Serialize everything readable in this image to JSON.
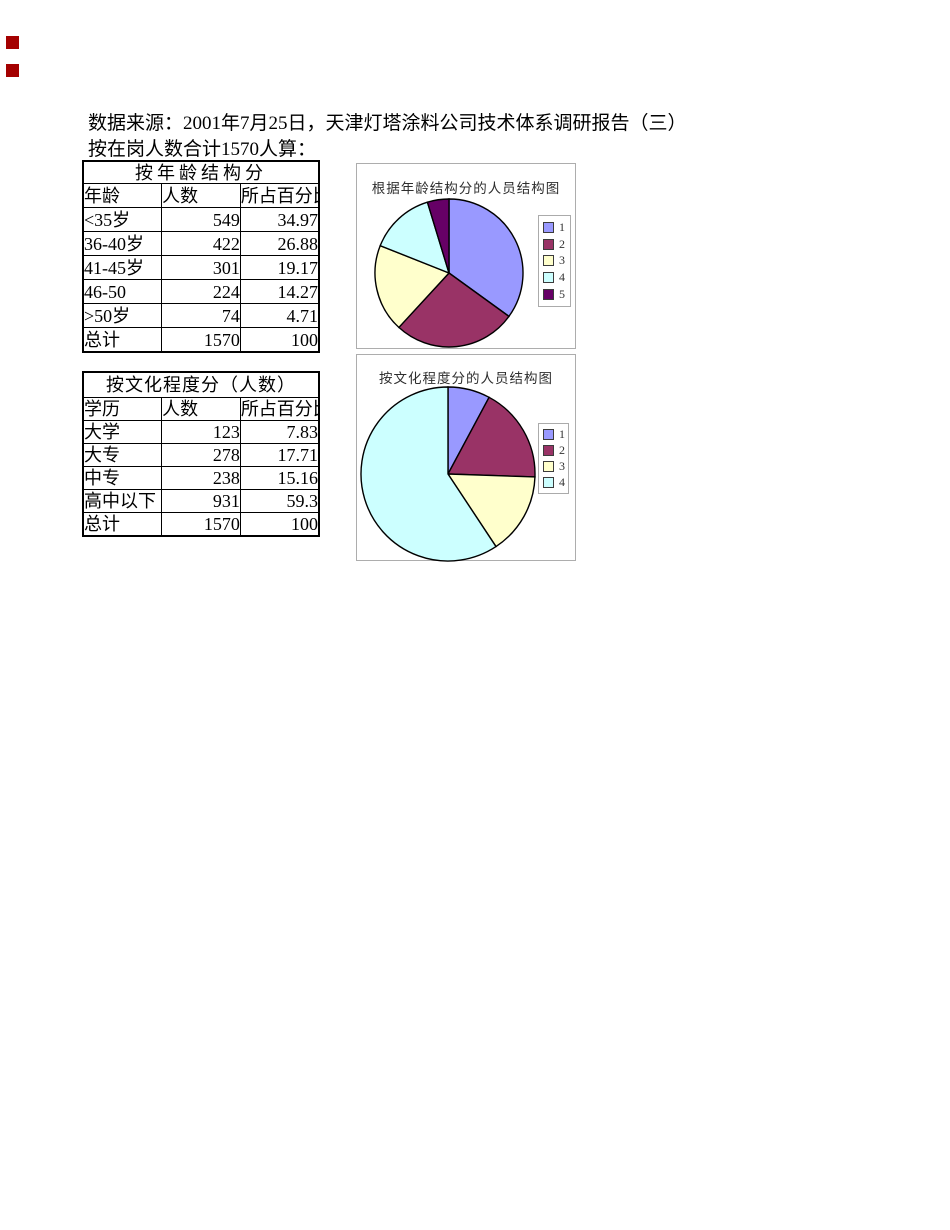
{
  "page": {
    "source_line": "数据来源：2001年7月25日，天津灯塔涂料公司技术体系调研报告（三）",
    "total_line": "按在岗人数合计1570人算："
  },
  "markers": {
    "color": "#a40000"
  },
  "tables": [
    {
      "title": "按年龄结构分",
      "headers": [
        "年龄",
        "人数",
        "所占百分比"
      ],
      "rows": [
        [
          "<35岁",
          "549",
          "34.97"
        ],
        [
          "36-40岁",
          "422",
          "26.88"
        ],
        [
          "41-45岁",
          "301",
          "19.17"
        ],
        [
          "46-50",
          "224",
          "14.27"
        ],
        [
          ">50岁",
          "74",
          "4.71"
        ],
        [
          "总计",
          "1570",
          "100"
        ]
      ]
    },
    {
      "title": "按文化程度分（人数）",
      "headers": [
        "学历",
        "人数",
        "所占百分比"
      ],
      "rows": [
        [
          "大学",
          "123",
          "7.83"
        ],
        [
          "大专",
          "278",
          "17.71"
        ],
        [
          "中专",
          "238",
          "15.16"
        ],
        [
          "高中以下",
          "931",
          "59.3"
        ],
        [
          "总计",
          "1570",
          "100"
        ]
      ]
    }
  ],
  "chart_data": [
    {
      "type": "pie",
      "title": "根据年龄结构分的人员结构图",
      "labels": [
        "1",
        "2",
        "3",
        "4",
        "5"
      ],
      "values": [
        34.97,
        26.88,
        19.17,
        14.27,
        4.71
      ],
      "colors": [
        "#9999FF",
        "#993366",
        "#FFFFCC",
        "#CCFFFF",
        "#660066"
      ],
      "legend_position": "right",
      "start_angle_deg": 0,
      "direction": "clockwise"
    },
    {
      "type": "pie",
      "title": "按文化程度分的人员结构图",
      "labels": [
        "1",
        "2",
        "3",
        "4"
      ],
      "values": [
        7.83,
        17.71,
        15.16,
        59.3
      ],
      "colors": [
        "#9999FF",
        "#993366",
        "#FFFFCC",
        "#CCFFFF"
      ],
      "legend_position": "right",
      "start_angle_deg": 0,
      "direction": "clockwise"
    }
  ]
}
